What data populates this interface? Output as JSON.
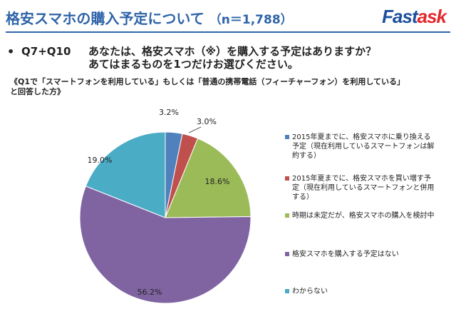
{
  "header": {
    "title": "格安スマホの購入予定について",
    "sample": "（n＝1,788）",
    "logo_fast": "Fast",
    "logo_ask": "ask",
    "accent_color": "#2e64a8"
  },
  "question": {
    "bullet": "•",
    "number": "Q7+Q10",
    "text_line1": "あなたは、格安スマホ（※）を購入する予定はありますか？",
    "text_line2": "あてはまるものを1つだけお選びください。"
  },
  "condition": {
    "line1": "《Q1で「スマートフォンを利用している」もしくは「普通の携帯電話（フィーチャーフォン）を利用している」",
    "line2": "と回答した方》"
  },
  "chart_data": {
    "type": "pie",
    "start_angle_deg": 0,
    "direction": "clockwise",
    "slices": [
      {
        "label": "2015年夏までに、格安スマホに乗り換える予定（現在利用しているスマートフォンは解約する）",
        "value": 3.2,
        "value_label": "3.2%",
        "color": "#4f81bd"
      },
      {
        "label": "2015年夏までに、格安スマホを買い増す予定（現在利用しているスマートフォンと併用する）",
        "value": 3.0,
        "value_label": "3.0%",
        "color": "#c0504d"
      },
      {
        "label": "時期は未定だが、格安スマホの購入を検討中",
        "value": 18.6,
        "value_label": "18.6%",
        "color": "#9bbb59"
      },
      {
        "label": "格安スマホを購入する予定はない",
        "value": 56.2,
        "value_label": "56.2%",
        "color": "#8064a2"
      },
      {
        "label": "わからない",
        "value": 19.0,
        "value_label": "19.0%",
        "color": "#4bacc6"
      }
    ]
  }
}
